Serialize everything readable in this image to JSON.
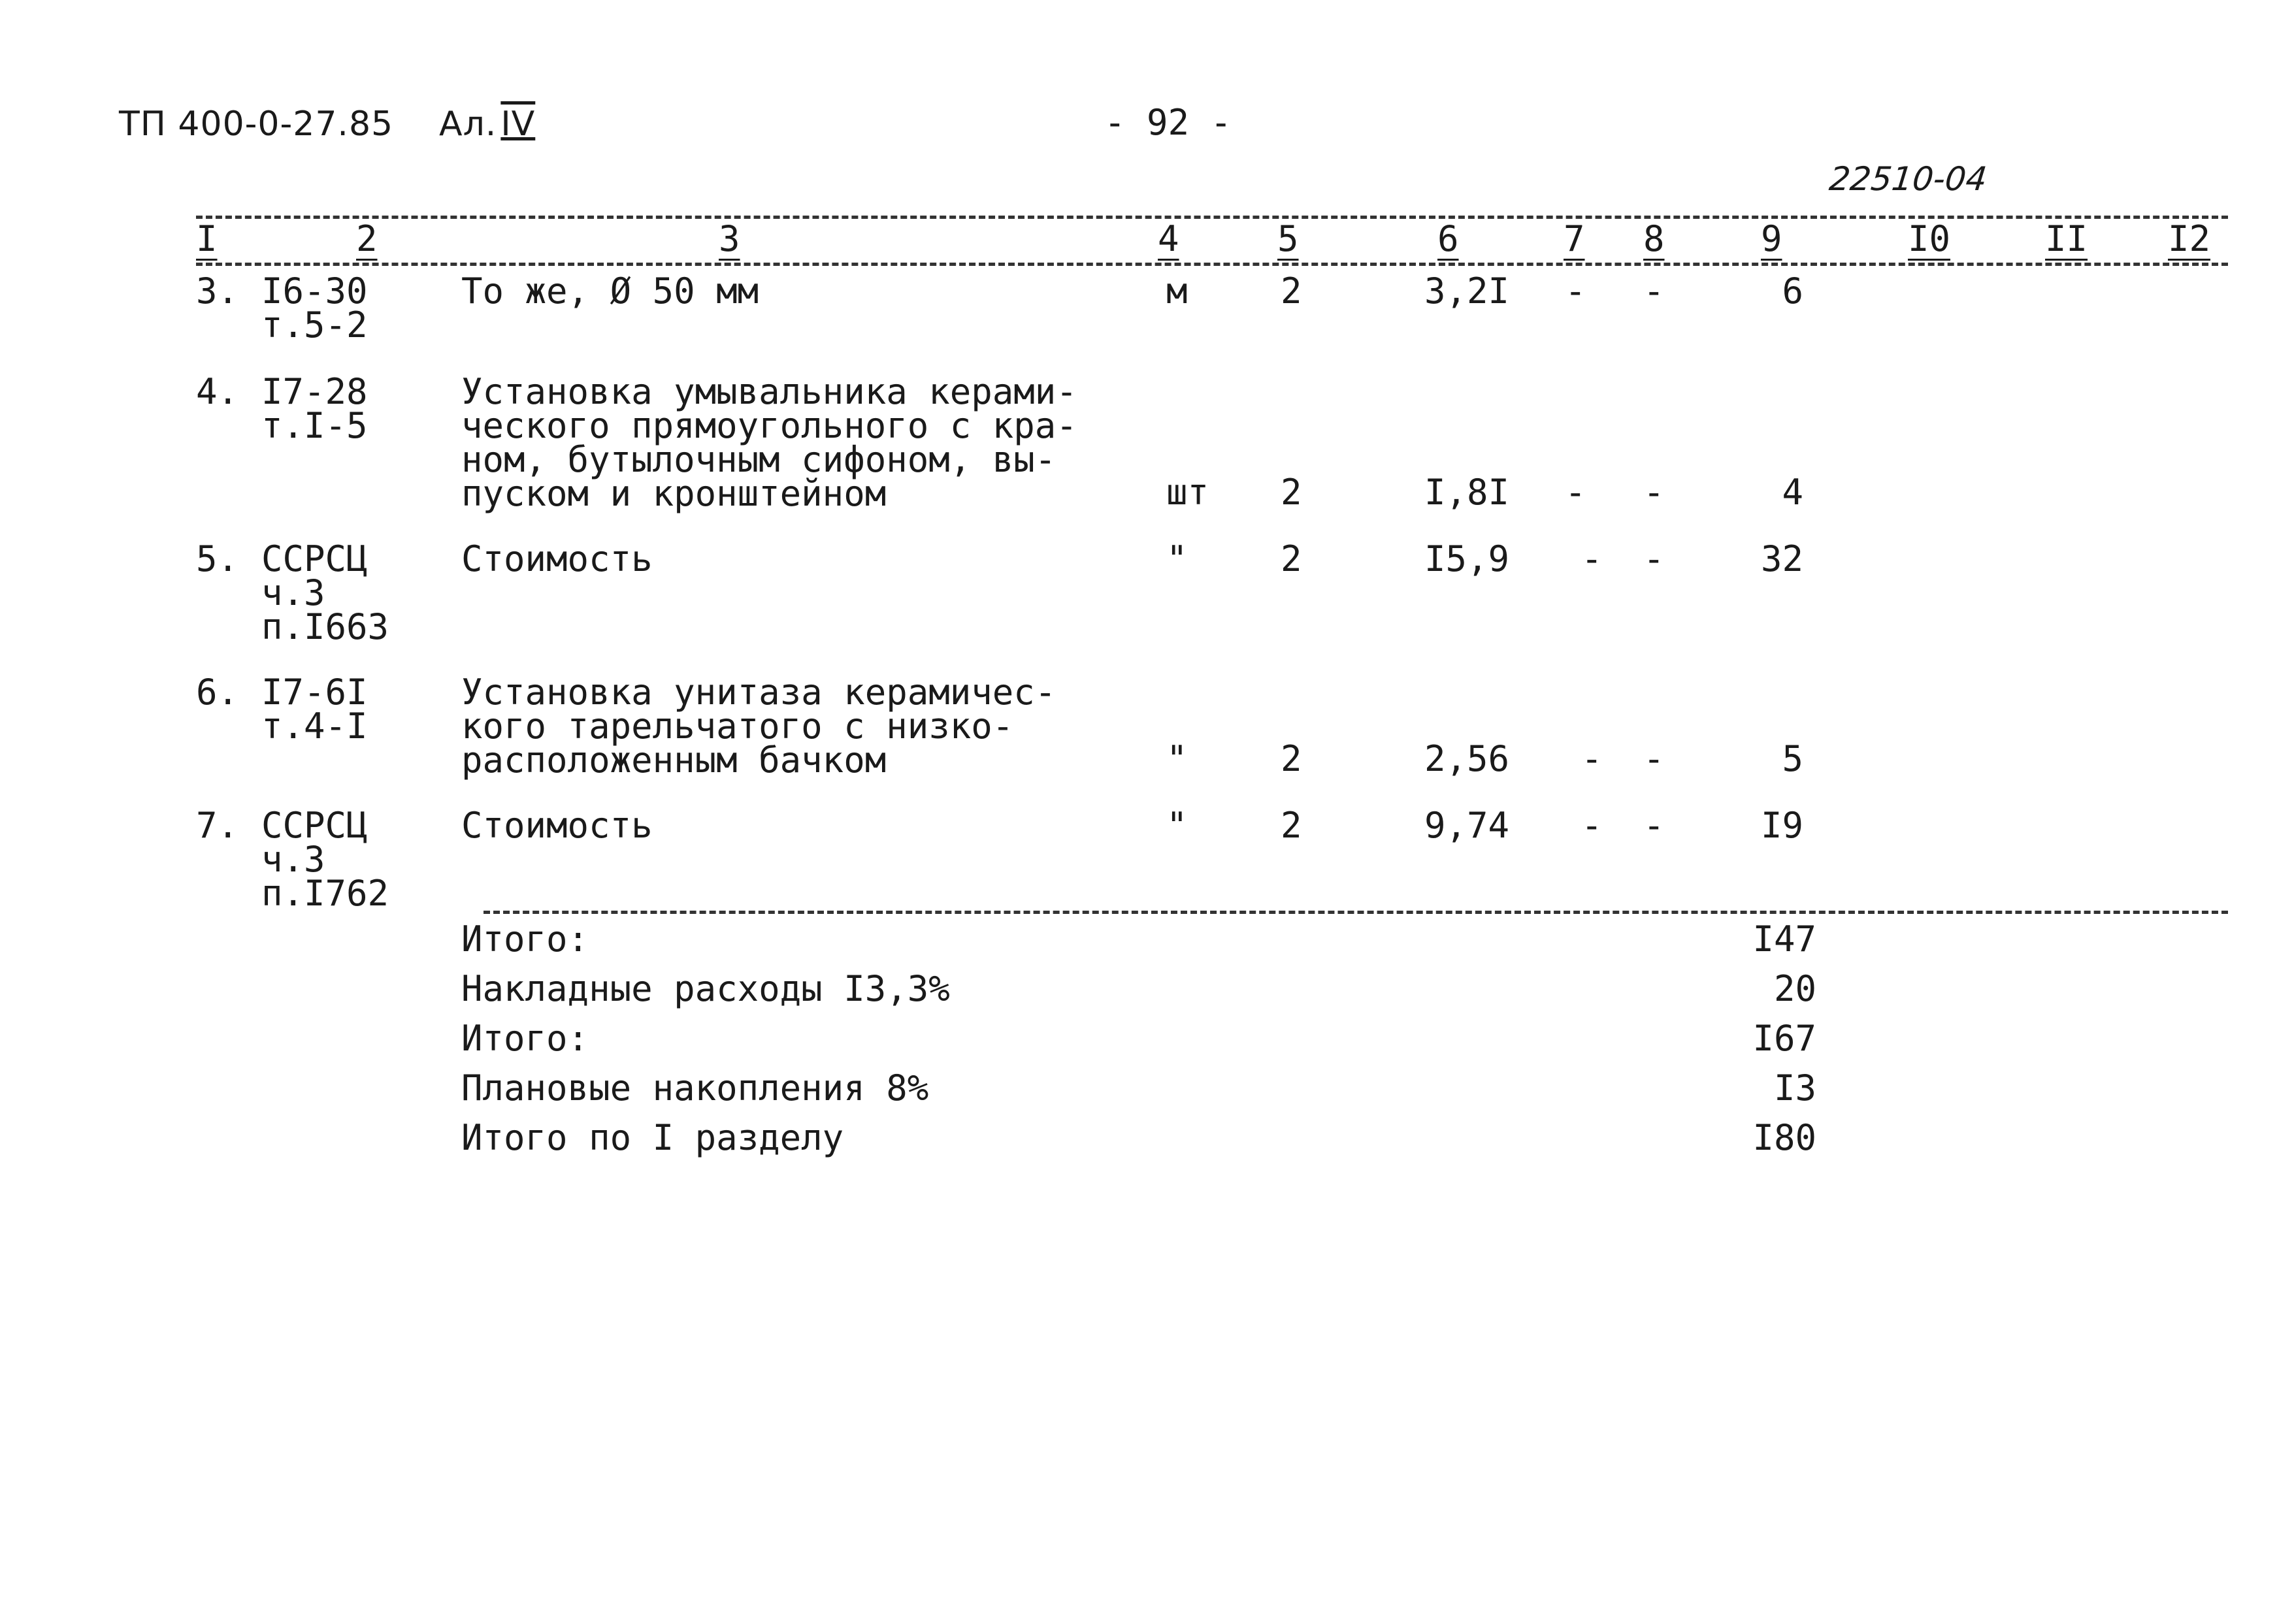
{
  "header": {
    "doc_id": "ТП 400-0-27.85",
    "album": "Ал.",
    "album_numeral": "IV",
    "page_number": "- 92 -",
    "doc_code": "22510-04"
  },
  "column_numbers": [
    "I",
    "2",
    "3",
    "4",
    "5",
    "6",
    "7",
    "8",
    "9",
    "I0",
    "II",
    "I2"
  ],
  "rows": [
    {
      "num": "3.",
      "code": "I6-30\nт.5-2",
      "name": "То же, Ø 50 мм",
      "unit": "м",
      "qty": "2",
      "price": "3,2I",
      "c7": "-",
      "c8": "-",
      "total": "6"
    },
    {
      "num": "4.",
      "code": "I7-28\nт.I-5",
      "name": "Установка умывальника керами-\nческого прямоугольного с кра-\nном, бутылочным сифоном, вы-\nпуском и кронштейном",
      "unit": "шт",
      "qty": "2",
      "price": "I,8I",
      "c7": "-",
      "c8": "-",
      "total": "4"
    },
    {
      "num": "5.",
      "code": "ССРСЦ\nч.3\nп.I663",
      "name": "Стоимость",
      "unit": "\"",
      "qty": "2",
      "price": "I5,9",
      "c7": "-",
      "c8": "-",
      "total": "32"
    },
    {
      "num": "6.",
      "code": "I7-6I\nт.4-I",
      "name": "Установка унитаза керамичес-\nкого тарельчатого с низко-\nрасположенным бачком",
      "unit": "\"",
      "qty": "2",
      "price": "2,56",
      "c7": "-",
      "c8": "-",
      "total": "5"
    },
    {
      "num": "7.",
      "code": "ССРСЦ\nч.3\nп.I762",
      "name": "Стоимость",
      "unit": "\"",
      "qty": "2",
      "price": "9,74",
      "c7": "-",
      "c8": "-",
      "total": "I9"
    }
  ],
  "totals": [
    {
      "label": "Итого:",
      "value": "I47"
    },
    {
      "label": "Накладные расходы I3,3%",
      "value": "20"
    },
    {
      "label": "Итого:",
      "value": "I67"
    },
    {
      "label": "Плановые накопления 8%",
      "value": "I3"
    },
    {
      "label": "Итого по I разделу",
      "value": "I80"
    }
  ]
}
